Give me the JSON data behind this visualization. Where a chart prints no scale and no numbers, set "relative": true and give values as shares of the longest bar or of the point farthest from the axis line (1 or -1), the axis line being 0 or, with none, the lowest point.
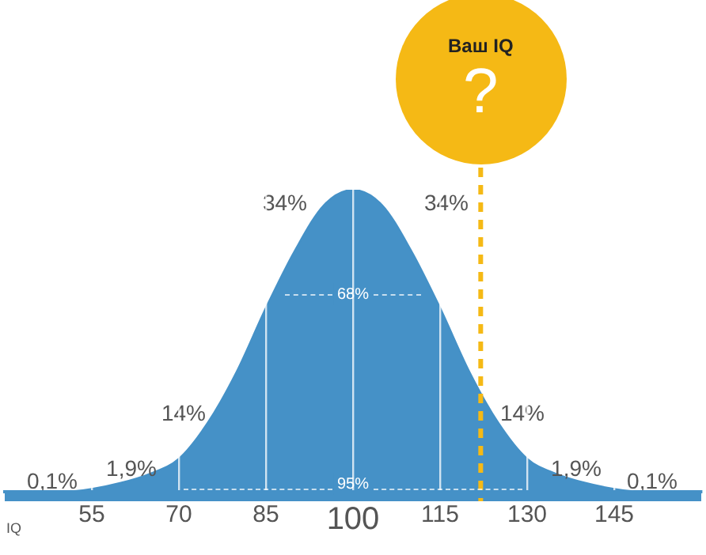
{
  "chart_data": {
    "type": "area",
    "relative": true,
    "xlabel": "IQ",
    "x": [
      40,
      45,
      50,
      55,
      60,
      65,
      70,
      75,
      80,
      85,
      90,
      95,
      100,
      105,
      110,
      115,
      120,
      125,
      130,
      135,
      140,
      145,
      150,
      155,
      160
    ],
    "series": [
      {
        "color": "#4591c7",
        "values": [
          0,
          0,
          0,
          0.01,
          0.03,
          0.06,
          0.11,
          0.23,
          0.4,
          0.61,
          0.8,
          0.95,
          1,
          0.95,
          0.8,
          0.61,
          0.4,
          0.23,
          0.11,
          0.06,
          0.03,
          0.01,
          0,
          0,
          0
        ]
      }
    ],
    "xlim": [
      40,
      160
    ],
    "xticks": [
      55,
      70,
      85,
      100,
      115,
      130,
      145
    ],
    "grid": "x",
    "marker": "none",
    "legend": false,
    "ref_lines": [
      {
        "axis": "x",
        "value": 122,
        "label": "Ваш IQ",
        "color": "#f5b915",
        "line_style": "dashed"
      }
    ],
    "annotations": [
      "0,1%",
      "1,9%",
      "14%",
      "34%",
      "68%",
      "34%",
      "14%",
      "1,9%",
      "95%",
      "0,1%",
      "?"
    ]
  }
}
